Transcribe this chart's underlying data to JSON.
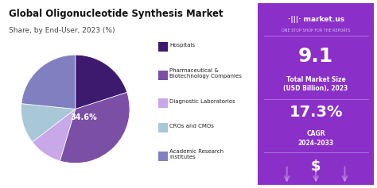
{
  "title": "Global Oligonucleotide Synthesis Market",
  "subtitle": "Share, by End-User, 2023 (%)",
  "pie_labels": [
    "Hospitals",
    "Pharmaceutical &\nBiotechnology Companies",
    "Diagnostic Laboratories",
    "CROs and CMOs",
    "Academic Research\nInstitutes"
  ],
  "pie_values": [
    20.0,
    34.6,
    10.0,
    12.0,
    23.4
  ],
  "pie_colors": [
    "#3d1a6e",
    "#7b4fa6",
    "#c8a8e8",
    "#a8c8d8",
    "#8080c0"
  ],
  "pie_label_color": "white",
  "pie_center_label": "34.6%",
  "bg_color": "#ffffff",
  "right_bg": "#8b2fc9",
  "right_bg2": "#7b22b8",
  "market_value": "9.1",
  "market_label1": "Total Market Size",
  "market_label2": "(USD Billion), 2023",
  "cagr_value": "17.3%",
  "cagr_label1": "CAGR",
  "cagr_label2": "2024-2033",
  "dollar_sign": "$",
  "brand": "market.us"
}
